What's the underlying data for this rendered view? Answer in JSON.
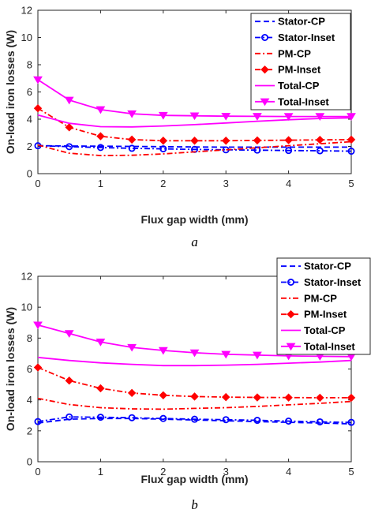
{
  "chart_data": [
    {
      "type": "line",
      "caption": "a",
      "xlabel": "Flux gap width (mm)",
      "ylabel": "On-load iron losses (W)",
      "xlim": [
        0,
        5
      ],
      "ylim": [
        0,
        12
      ],
      "xticks": [
        0,
        1,
        2,
        3,
        4,
        5
      ],
      "yticks": [
        0,
        2,
        4,
        6,
        8,
        10,
        12
      ],
      "x": [
        0,
        0.5,
        1,
        1.5,
        2,
        2.5,
        3,
        3.5,
        4,
        4.5,
        5
      ],
      "legend_position": "top-right",
      "series": [
        {
          "name": "Stator-CP",
          "color": "#0000ff",
          "dash": "dashed",
          "marker": "none",
          "values": [
            2.05,
            2.03,
            2.02,
            2.0,
            1.98,
            1.96,
            1.95,
            1.95,
            1.95,
            1.95,
            1.95
          ]
        },
        {
          "name": "Stator-Inset",
          "color": "#0000ff",
          "dash": "dashdot",
          "marker": "circle",
          "values": [
            2.05,
            1.98,
            1.92,
            1.86,
            1.82,
            1.78,
            1.75,
            1.73,
            1.7,
            1.68,
            1.65
          ]
        },
        {
          "name": "PM-CP",
          "color": "#ff0000",
          "dash": "dashdot",
          "marker": "none",
          "values": [
            2.1,
            1.5,
            1.33,
            1.35,
            1.45,
            1.6,
            1.75,
            1.9,
            2.05,
            2.2,
            2.35
          ]
        },
        {
          "name": "PM-Inset",
          "color": "#ff0000",
          "dash": "dashdot",
          "marker": "diamond",
          "values": [
            4.8,
            3.4,
            2.75,
            2.5,
            2.42,
            2.42,
            2.42,
            2.44,
            2.46,
            2.48,
            2.5
          ]
        },
        {
          "name": "Total-CP",
          "color": "#ff00ff",
          "dash": "solid",
          "marker": "none",
          "values": [
            4.3,
            3.7,
            3.45,
            3.43,
            3.5,
            3.6,
            3.72,
            3.85,
            3.96,
            4.05,
            4.1
          ]
        },
        {
          "name": "Total-Inset",
          "color": "#ff00ff",
          "dash": "solid",
          "marker": "triangle-down",
          "values": [
            6.9,
            5.4,
            4.7,
            4.4,
            4.28,
            4.25,
            4.22,
            4.21,
            4.2,
            4.2,
            4.2
          ]
        }
      ]
    },
    {
      "type": "line",
      "caption": "b",
      "xlabel": "Flux gap width (mm)",
      "ylabel": "On-load iron losses (W)",
      "xlim": [
        0,
        5
      ],
      "ylim": [
        0,
        12
      ],
      "xticks": [
        0,
        1,
        2,
        3,
        4,
        5
      ],
      "yticks": [
        0,
        2,
        4,
        6,
        8,
        10,
        12
      ],
      "x": [
        0,
        0.5,
        1,
        1.5,
        2,
        2.5,
        3,
        3.5,
        4,
        4.5,
        5
      ],
      "legend_position": "top-right",
      "series": [
        {
          "name": "Stator-CP",
          "color": "#0000ff",
          "dash": "dashed",
          "marker": "none",
          "values": [
            2.5,
            2.75,
            2.8,
            2.8,
            2.75,
            2.7,
            2.65,
            2.6,
            2.55,
            2.5,
            2.45
          ]
        },
        {
          "name": "Stator-Inset",
          "color": "#0000ff",
          "dash": "dashdot",
          "marker": "circle",
          "values": [
            2.6,
            2.9,
            2.88,
            2.85,
            2.8,
            2.75,
            2.72,
            2.68,
            2.63,
            2.58,
            2.55
          ]
        },
        {
          "name": "PM-CP",
          "color": "#ff0000",
          "dash": "dashdot",
          "marker": "none",
          "values": [
            4.1,
            3.7,
            3.5,
            3.42,
            3.4,
            3.45,
            3.5,
            3.58,
            3.68,
            3.78,
            3.9
          ]
        },
        {
          "name": "PM-Inset",
          "color": "#ff0000",
          "dash": "dashdot",
          "marker": "diamond",
          "values": [
            6.1,
            5.25,
            4.75,
            4.45,
            4.3,
            4.22,
            4.18,
            4.16,
            4.15,
            4.14,
            4.14
          ]
        },
        {
          "name": "Total-CP",
          "color": "#ff00ff",
          "dash": "solid",
          "marker": "none",
          "values": [
            6.75,
            6.55,
            6.4,
            6.3,
            6.22,
            6.22,
            6.25,
            6.3,
            6.38,
            6.45,
            6.55
          ]
        },
        {
          "name": "Total-Inset",
          "color": "#ff00ff",
          "dash": "solid",
          "marker": "triangle-down",
          "values": [
            8.85,
            8.3,
            7.75,
            7.4,
            7.2,
            7.05,
            6.95,
            6.9,
            6.85,
            6.82,
            6.8
          ]
        }
      ]
    }
  ]
}
